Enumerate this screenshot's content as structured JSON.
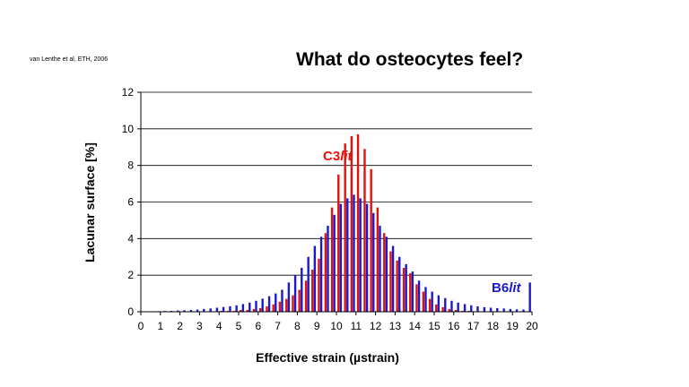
{
  "citation": "van Lenthe et al, ETH, 2006",
  "title": "What do osteocytes feel?",
  "chart_data": {
    "type": "bar",
    "xlabel": "Effective strain (µstrain)",
    "ylabel": "Lacunar surface [%]",
    "xlim": [
      0,
      20
    ],
    "ylim": [
      0,
      12
    ],
    "xticks": [
      0,
      1,
      2,
      3,
      4,
      5,
      6,
      7,
      8,
      9,
      10,
      11,
      12,
      13,
      14,
      15,
      16,
      17,
      18,
      19,
      20
    ],
    "yticks": [
      0,
      2,
      4,
      6,
      8,
      10,
      12
    ],
    "gridlines": true,
    "bin_width": 0.333,
    "series": [
      {
        "name": "C3",
        "name_suffix": "lit",
        "color": "#e3120b",
        "x": [
          0.33,
          0.67,
          1.0,
          1.33,
          1.67,
          2.0,
          2.33,
          2.67,
          3.0,
          3.33,
          3.67,
          4.0,
          4.33,
          4.67,
          5.0,
          5.33,
          5.67,
          6.0,
          6.33,
          6.67,
          7.0,
          7.33,
          7.67,
          8.0,
          8.33,
          8.67,
          9.0,
          9.33,
          9.67,
          10.0,
          10.33,
          10.67,
          11.0,
          11.33,
          11.67,
          12.0,
          12.33,
          12.67,
          13.0,
          13.33,
          13.67,
          14.0,
          14.33,
          14.67,
          15.0,
          15.33,
          15.67,
          16.0,
          16.33,
          16.67,
          17.0,
          17.33,
          17.67,
          18.0,
          18.33,
          18.67,
          19.0,
          19.33,
          19.67,
          20.0
        ],
        "values": [
          0.0,
          0.0,
          0.0,
          0.0,
          0.0,
          0.0,
          0.0,
          0.0,
          0.0,
          0.0,
          0.0,
          0.0,
          0.05,
          0.05,
          0.05,
          0.1,
          0.1,
          0.15,
          0.2,
          0.3,
          0.4,
          0.55,
          0.7,
          0.9,
          1.2,
          1.7,
          2.3,
          2.9,
          4.3,
          5.7,
          7.5,
          9.2,
          9.6,
          9.7,
          8.9,
          7.8,
          5.7,
          4.3,
          3.3,
          2.8,
          2.4,
          2.1,
          1.5,
          1.1,
          0.7,
          0.4,
          0.25,
          0.15,
          0.1,
          0.05,
          0.05,
          0.0,
          0.0,
          0.0,
          0.0,
          0.0,
          0.0,
          0.0,
          0.0,
          0.0
        ]
      },
      {
        "name": "B6",
        "name_suffix": "lit",
        "color": "#1a1acc",
        "x": [
          0.33,
          0.67,
          1.0,
          1.33,
          1.67,
          2.0,
          2.33,
          2.67,
          3.0,
          3.33,
          3.67,
          4.0,
          4.33,
          4.67,
          5.0,
          5.33,
          5.67,
          6.0,
          6.33,
          6.67,
          7.0,
          7.33,
          7.67,
          8.0,
          8.33,
          8.67,
          9.0,
          9.33,
          9.67,
          10.0,
          10.33,
          10.67,
          11.0,
          11.33,
          11.67,
          12.0,
          12.33,
          12.67,
          13.0,
          13.33,
          13.67,
          14.0,
          14.33,
          14.67,
          15.0,
          15.33,
          15.67,
          16.0,
          16.33,
          16.67,
          17.0,
          17.33,
          17.67,
          18.0,
          18.33,
          18.67,
          19.0,
          19.33,
          19.67,
          20.0
        ],
        "values": [
          0.02,
          0.02,
          0.03,
          0.04,
          0.05,
          0.07,
          0.08,
          0.1,
          0.12,
          0.15,
          0.18,
          0.22,
          0.26,
          0.3,
          0.35,
          0.42,
          0.5,
          0.6,
          0.72,
          0.85,
          1.0,
          1.2,
          1.6,
          2.0,
          2.4,
          3.0,
          3.6,
          4.1,
          4.7,
          5.3,
          5.9,
          6.2,
          6.4,
          6.2,
          5.9,
          5.4,
          4.7,
          4.1,
          3.6,
          3.0,
          2.6,
          2.2,
          1.7,
          1.35,
          1.1,
          0.9,
          0.75,
          0.6,
          0.5,
          0.42,
          0.35,
          0.3,
          0.25,
          0.22,
          0.2,
          0.18,
          0.15,
          0.13,
          0.12,
          1.6
        ]
      }
    ]
  }
}
